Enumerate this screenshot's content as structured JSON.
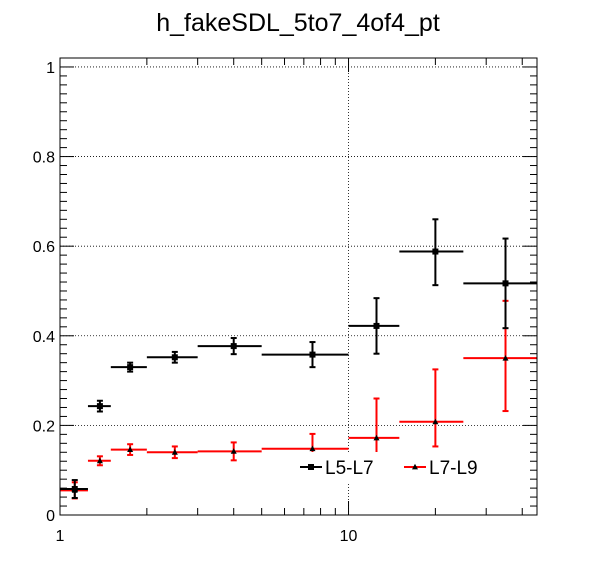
{
  "chart_data": {
    "type": "scatter",
    "title": "h_fakeSDL_5to7_4of4_pt",
    "xlabel": "",
    "ylabel": "",
    "x_scale": "log",
    "xlim": [
      1,
      45
    ],
    "ylim": [
      0,
      1.02
    ],
    "grid": true,
    "legend_position": "bottom-right",
    "x_tick_labels": [
      {
        "value": 1,
        "label": "1"
      },
      {
        "value": 10,
        "label": "10"
      }
    ],
    "y_tick_labels": [
      {
        "value": 0,
        "label": "0"
      },
      {
        "value": 0.2,
        "label": "0.2"
      },
      {
        "value": 0.4,
        "label": "0.4"
      },
      {
        "value": 0.6,
        "label": "0.6"
      },
      {
        "value": 0.8,
        "label": "0.8"
      },
      {
        "value": 1,
        "label": "1"
      }
    ],
    "series": [
      {
        "name": "L5-L7",
        "color": "#000000",
        "marker": "square",
        "points": [
          {
            "x": 1.125,
            "xlo": 1.0,
            "xhi": 1.25,
            "y": 0.058,
            "elo": 0.02,
            "ehi": 0.02
          },
          {
            "x": 1.375,
            "xlo": 1.25,
            "xhi": 1.5,
            "y": 0.243,
            "elo": 0.012,
            "ehi": 0.012
          },
          {
            "x": 1.75,
            "xlo": 1.5,
            "xhi": 2.0,
            "y": 0.33,
            "elo": 0.01,
            "ehi": 0.01
          },
          {
            "x": 2.5,
            "xlo": 2.0,
            "xhi": 3.0,
            "y": 0.352,
            "elo": 0.012,
            "ehi": 0.012
          },
          {
            "x": 4.0,
            "xlo": 3.0,
            "xhi": 5.0,
            "y": 0.377,
            "elo": 0.018,
            "ehi": 0.018
          },
          {
            "x": 7.5,
            "xlo": 5.0,
            "xhi": 10.0,
            "y": 0.358,
            "elo": 0.028,
            "ehi": 0.028
          },
          {
            "x": 12.5,
            "xlo": 10.0,
            "xhi": 15.0,
            "y": 0.422,
            "elo": 0.062,
            "ehi": 0.062
          },
          {
            "x": 20.0,
            "xlo": 15.0,
            "xhi": 25.0,
            "y": 0.588,
            "elo": 0.075,
            "ehi": 0.072
          },
          {
            "x": 35.0,
            "xlo": 25.0,
            "xhi": 45.0,
            "y": 0.517,
            "elo": 0.1,
            "ehi": 0.1
          }
        ]
      },
      {
        "name": "L7-L9",
        "color": "#ff0000",
        "marker": "triangle",
        "points": [
          {
            "x": 1.125,
            "xlo": 1.0,
            "xhi": 1.25,
            "y": 0.055,
            "elo": 0.018,
            "ehi": 0.018
          },
          {
            "x": 1.375,
            "xlo": 1.25,
            "xhi": 1.5,
            "y": 0.121,
            "elo": 0.01,
            "ehi": 0.01
          },
          {
            "x": 1.75,
            "xlo": 1.5,
            "xhi": 2.0,
            "y": 0.146,
            "elo": 0.012,
            "ehi": 0.012
          },
          {
            "x": 2.5,
            "xlo": 2.0,
            "xhi": 3.0,
            "y": 0.14,
            "elo": 0.013,
            "ehi": 0.013
          },
          {
            "x": 4.0,
            "xlo": 3.0,
            "xhi": 5.0,
            "y": 0.142,
            "elo": 0.02,
            "ehi": 0.02
          },
          {
            "x": 7.5,
            "xlo": 5.0,
            "xhi": 10.0,
            "y": 0.148,
            "elo": 0.033,
            "ehi": 0.033
          },
          {
            "x": 12.5,
            "xlo": 10.0,
            "xhi": 15.0,
            "y": 0.172,
            "elo": 0.05,
            "ehi": 0.088
          },
          {
            "x": 20.0,
            "xlo": 15.0,
            "xhi": 25.0,
            "y": 0.208,
            "elo": 0.055,
            "ehi": 0.117
          },
          {
            "x": 35.0,
            "xlo": 25.0,
            "xhi": 45.0,
            "y": 0.35,
            "elo": 0.118,
            "ehi": 0.128
          }
        ]
      }
    ]
  }
}
